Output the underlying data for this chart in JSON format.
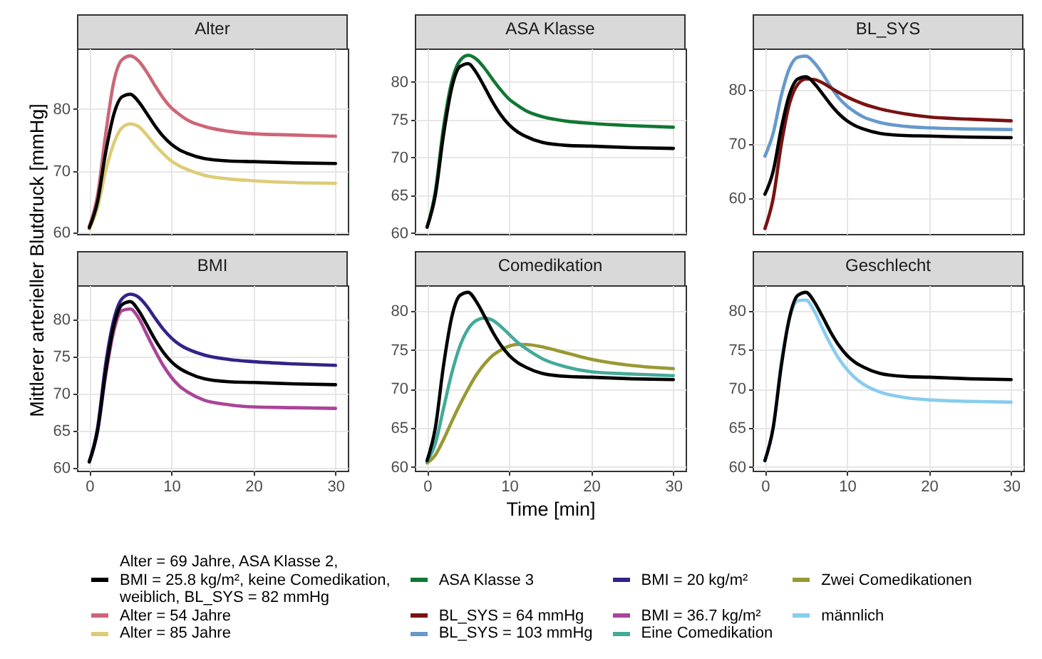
{
  "chart_data": [
    {
      "type": "line",
      "title": "Alter",
      "ylabel": "Mittlerer arterieller Blutdruck [mmHg]",
      "legend": "bottom",
      "x": [
        0,
        1,
        2,
        3,
        4,
        5,
        6,
        7,
        8,
        9,
        10,
        11,
        12,
        14,
        17,
        20,
        25,
        30
      ],
      "xlim": [
        -1.5,
        31.5
      ],
      "xticks": [
        0,
        10,
        20,
        30
      ],
      "ylim": [
        59.8,
        89.8
      ],
      "yticks": [
        60,
        70,
        80
      ],
      "grid": true,
      "tick_labels": "y",
      "series": [
        {
          "name": "Alter = 69 Jahre, ASA Klasse 2, BMI = 25.8 kg/m², keine Comedikation, weiblich, BL_SYS = 82 mmHg",
          "color": "#000000",
          "values": [
            60.8,
            65,
            73,
            79.2,
            82,
            82.4,
            81.2,
            79.3,
            77.3,
            75.6,
            74.3,
            73.4,
            72.8,
            72,
            71.6,
            71.5,
            71.3,
            71.2
          ]
        },
        {
          "name": "Alter = 54 Jahre",
          "color": "#cc6677",
          "values": [
            61,
            66,
            76,
            84.5,
            88,
            88.6,
            87.8,
            86,
            83.8,
            81.8,
            80.2,
            79.1,
            78.2,
            77.2,
            76.4,
            76,
            75.8,
            75.6
          ]
        },
        {
          "name": "Alter = 85 Jahre",
          "color": "#ddcc77",
          "values": [
            60.6,
            64,
            70,
            74.5,
            77,
            77.6,
            77.2,
            75.8,
            74.2,
            72.8,
            71.6,
            70.8,
            70.2,
            69.3,
            68.7,
            68.4,
            68.1,
            68
          ]
        }
      ]
    },
    {
      "type": "line",
      "title": "ASA Klasse",
      "legend": "bottom",
      "x": [
        0,
        1,
        2,
        3,
        4,
        5,
        6,
        7,
        8,
        9,
        10,
        11,
        12,
        14,
        17,
        20,
        25,
        30
      ],
      "xlim": [
        -1.5,
        31.5
      ],
      "xticks": [
        0,
        10,
        20,
        30
      ],
      "ylim": [
        59.9,
        84.4
      ],
      "yticks": [
        60,
        65,
        70,
        75,
        80
      ],
      "grid": true,
      "tick_labels": "y",
      "series": [
        {
          "name": "Alter = 69 Jahre, ASA Klasse 2, BMI = 25.8 kg/m², keine Comedikation, weiblich, BL_SYS = 82 mmHg",
          "color": "#000000",
          "values": [
            60.8,
            65,
            73,
            79.2,
            82,
            82.4,
            81.2,
            79.3,
            77.3,
            75.6,
            74.3,
            73.4,
            72.8,
            72,
            71.6,
            71.5,
            71.3,
            71.2
          ]
        },
        {
          "name": "ASA Klasse 3",
          "color": "#117733",
          "values": [
            60.8,
            65.5,
            74,
            80,
            82.8,
            83.5,
            83,
            81.8,
            80.3,
            78.9,
            77.7,
            76.9,
            76.2,
            75.4,
            74.8,
            74.5,
            74.2,
            74
          ]
        }
      ]
    },
    {
      "type": "line",
      "title": "BL_SYS",
      "legend": "bottom",
      "x": [
        0,
        1,
        2,
        3,
        4,
        5,
        6,
        7,
        8,
        9,
        10,
        11,
        12,
        14,
        17,
        20,
        25,
        30
      ],
      "xlim": [
        -1.5,
        31.5
      ],
      "xticks": [
        0,
        10,
        20,
        30
      ],
      "ylim": [
        53.5,
        87.6
      ],
      "yticks": [
        60,
        70,
        80
      ],
      "grid": true,
      "tick_labels": "y",
      "series": [
        {
          "name": "Alter = 69 Jahre, ASA Klasse 2, BMI = 25.8 kg/m², keine Comedikation, weiblich, BL_SYS = 82 mmHg",
          "color": "#000000",
          "values": [
            60.8,
            65,
            73,
            79.2,
            82,
            82.4,
            81.2,
            79.3,
            77.3,
            75.6,
            74.3,
            73.4,
            72.8,
            72,
            71.6,
            71.5,
            71.3,
            71.2
          ]
        },
        {
          "name": "BL_SYS = 64 mmHg",
          "color": "#7a1212",
          "values": [
            54.5,
            60,
            70,
            77.5,
            81,
            82,
            81.9,
            81.3,
            80.4,
            79.5,
            78.7,
            78,
            77.4,
            76.5,
            75.6,
            75,
            74.6,
            74.3
          ]
        },
        {
          "name": "BL_SYS = 103 mmHg",
          "color": "#6699cc",
          "values": [
            67.8,
            72,
            79,
            84,
            86,
            86.2,
            85,
            83,
            80.6,
            78.5,
            77,
            75.9,
            75,
            74,
            73.3,
            73,
            72.8,
            72.7
          ]
        }
      ]
    },
    {
      "type": "line",
      "title": "BMI",
      "legend": "bottom",
      "x": [
        0,
        1,
        2,
        3,
        4,
        5,
        6,
        7,
        8,
        9,
        10,
        11,
        12,
        14,
        17,
        20,
        25,
        30
      ],
      "xlim": [
        -1.5,
        31.5
      ],
      "xticks": [
        0,
        10,
        20,
        30
      ],
      "ylim": [
        59.6,
        84.6
      ],
      "yticks": [
        60,
        65,
        70,
        75,
        80
      ],
      "grid": true,
      "series": [
        {
          "name": "Alter = 69 Jahre, ASA Klasse 2, BMI = 25.8 kg/m², keine Comedikation, weiblich, BL_SYS = 82 mmHg",
          "color": "#000000",
          "values": [
            60.8,
            65,
            73,
            79.2,
            82,
            82.4,
            81.2,
            79.3,
            77.3,
            75.6,
            74.3,
            73.4,
            72.8,
            72,
            71.6,
            71.5,
            71.3,
            71.2
          ]
        },
        {
          "name": "BMI = 20 kg/m²",
          "color": "#332288",
          "values": [
            60.8,
            65.3,
            74,
            80,
            82.8,
            83.4,
            83,
            81.8,
            80.2,
            78.7,
            77.5,
            76.6,
            76,
            75.2,
            74.6,
            74.3,
            74,
            73.8
          ]
        },
        {
          "name": "BMI = 36.7 kg/m²",
          "color": "#aa4499",
          "values": [
            60.8,
            64.8,
            72.5,
            78.5,
            81.2,
            81.4,
            80.2,
            78,
            75.8,
            73.8,
            72.2,
            71,
            70.2,
            69.1,
            68.5,
            68.2,
            68.1,
            68
          ]
        }
      ]
    },
    {
      "type": "line",
      "title": "Comedikation",
      "xlabel": "Time [min]",
      "legend": "bottom",
      "x": [
        0,
        1,
        2,
        3,
        4,
        5,
        6,
        7,
        8,
        9,
        10,
        11,
        12,
        14,
        17,
        20,
        25,
        30
      ],
      "xlim": [
        -1.5,
        31.5
      ],
      "xticks": [
        0,
        10,
        20,
        30
      ],
      "ylim": [
        59.5,
        83.3
      ],
      "yticks": [
        60,
        65,
        70,
        75,
        80
      ],
      "grid": true,
      "series": [
        {
          "name": "Alter = 69 Jahre, ASA Klasse 2, BMI = 25.8 kg/m², keine Comedikation, weiblich, BL_SYS = 82 mmHg",
          "color": "#000000",
          "values": [
            60.8,
            65,
            73,
            79.2,
            82,
            82.4,
            81.2,
            79.3,
            77.3,
            75.6,
            74.3,
            73.4,
            72.8,
            72,
            71.6,
            71.5,
            71.3,
            71.2
          ]
        },
        {
          "name": "Eine Comedikation",
          "color": "#44aa99",
          "values": [
            60.7,
            63,
            67.5,
            72,
            75.5,
            77.7,
            78.8,
            79.1,
            78.8,
            78,
            77,
            76,
            75.2,
            73.9,
            72.8,
            72.2,
            71.9,
            71.7
          ]
        },
        {
          "name": "Zwei Comedikationen",
          "color": "#999933",
          "values": [
            60.5,
            61.5,
            63.5,
            65.8,
            68,
            70,
            71.8,
            73.2,
            74.3,
            75,
            75.5,
            75.7,
            75.7,
            75.4,
            74.6,
            73.8,
            73,
            72.6
          ]
        }
      ]
    },
    {
      "type": "line",
      "title": "Geschlecht",
      "legend": "bottom",
      "x": [
        0,
        1,
        2,
        3,
        4,
        5,
        6,
        7,
        8,
        9,
        10,
        11,
        12,
        14,
        17,
        20,
        25,
        30
      ],
      "xlim": [
        -1.5,
        31.5
      ],
      "xticks": [
        0,
        10,
        20,
        30
      ],
      "ylim": [
        59.5,
        83.3
      ],
      "yticks": [
        60,
        65,
        70,
        75,
        80
      ],
      "grid": true,
      "series": [
        {
          "name": "Alter = 69 Jahre, ASA Klasse 2, BMI = 25.8 kg/m², keine Comedikation, weiblich, BL_SYS = 82 mmHg",
          "color": "#000000",
          "values": [
            60.8,
            65,
            73,
            79.2,
            82,
            82.4,
            81.2,
            79.3,
            77.3,
            75.6,
            74.3,
            73.4,
            72.8,
            72,
            71.6,
            71.5,
            71.3,
            71.2
          ]
        },
        {
          "name": "männlich",
          "color": "#88ccee",
          "values": [
            60.8,
            65,
            73.5,
            79,
            81.3,
            81.4,
            80,
            77.8,
            75.7,
            73.9,
            72.5,
            71.4,
            70.6,
            69.6,
            68.9,
            68.6,
            68.4,
            68.3
          ]
        }
      ]
    }
  ]
}
